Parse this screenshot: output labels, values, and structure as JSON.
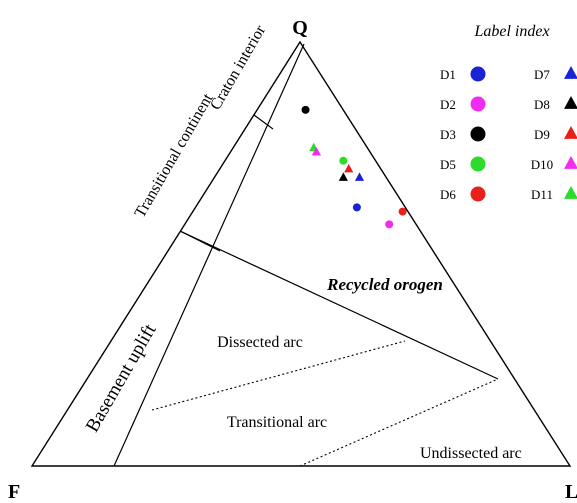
{
  "vertices": {
    "top": "Q",
    "left": "F",
    "right": "L"
  },
  "fields": {
    "craton_interior": "Craton interior",
    "transitional_continent": "Transitional continent",
    "basement_uplift": "Basement uplift",
    "recycled_orogen": "Recycled orogen",
    "dissected_arc": "Dissected arc",
    "transitional_arc": "Transitional arc",
    "undissected_arc": "Undissected arc"
  },
  "legend": {
    "title": "Label index",
    "items": [
      {
        "label": "D1",
        "shape": "circle",
        "color": "#1a22d6"
      },
      {
        "label": "D2",
        "shape": "circle",
        "color": "#f02cf0"
      },
      {
        "label": "D3",
        "shape": "circle",
        "color": "#000000"
      },
      {
        "label": "D5",
        "shape": "circle",
        "color": "#2bdc2b"
      },
      {
        "label": "D6",
        "shape": "circle",
        "color": "#e8201c"
      },
      {
        "label": "D7",
        "shape": "triangle",
        "color": "#1a22d6"
      },
      {
        "label": "D8",
        "shape": "triangle",
        "color": "#000000"
      },
      {
        "label": "D9",
        "shape": "triangle",
        "color": "#e8201c"
      },
      {
        "label": "D10",
        "shape": "triangle",
        "color": "#f02cf0"
      },
      {
        "label": "D11",
        "shape": "triangle",
        "color": "#2bdc2b"
      }
    ]
  },
  "samples": [
    {
      "label": "D3",
      "Q": 84,
      "F": 7,
      "L": 9
    },
    {
      "label": "D11",
      "Q": 75,
      "F": 10,
      "L": 15
    },
    {
      "label": "D10",
      "Q": 74,
      "F": 10,
      "L": 16
    },
    {
      "label": "D5",
      "Q": 72,
      "F": 6,
      "L": 22
    },
    {
      "label": "D9",
      "Q": 70,
      "F": 6,
      "L": 24
    },
    {
      "label": "D8",
      "Q": 68,
      "F": 8,
      "L": 24
    },
    {
      "label": "D7",
      "Q": 68,
      "F": 5,
      "L": 27
    },
    {
      "label": "D1",
      "Q": 61,
      "F": 9,
      "L": 30
    },
    {
      "label": "D6",
      "Q": 60,
      "F": 1,
      "L": 39
    },
    {
      "label": "D2",
      "Q": 57,
      "F": 5,
      "L": 38
    }
  ]
}
